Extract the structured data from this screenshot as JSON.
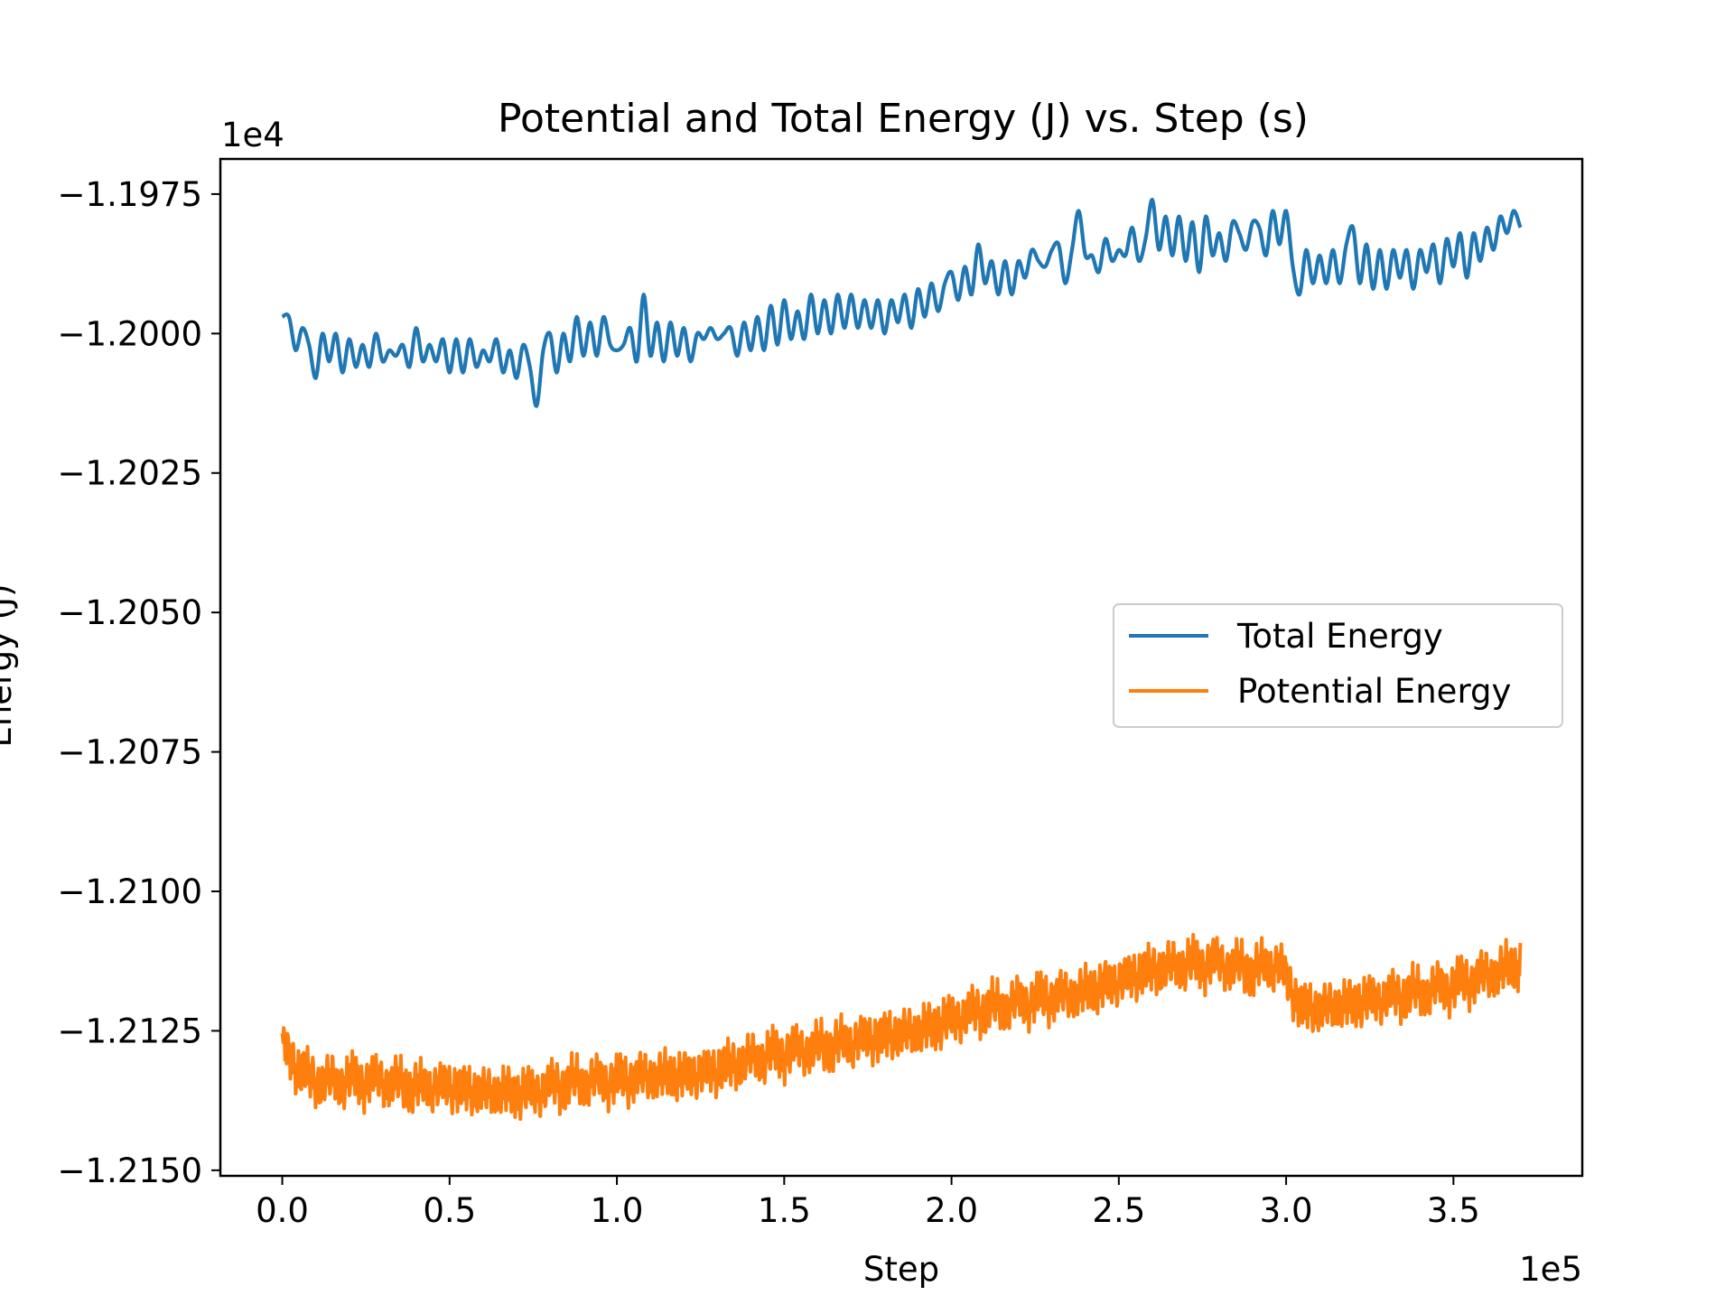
{
  "chart_data": {
    "type": "line",
    "title": "Potential and Total Energy (J) vs. Step (s)",
    "xlabel": "Step",
    "ylabel": "Energy (J)",
    "x_offset_label": "1e5",
    "y_offset_label": "1e4",
    "xlim": [
      -0.185,
      3.885
    ],
    "ylim": [
      -1.2151,
      -1.19687
    ],
    "x_ticks": [
      {
        "value": 0.0,
        "label": "0.0"
      },
      {
        "value": 0.5,
        "label": "0.5"
      },
      {
        "value": 1.0,
        "label": "1.0"
      },
      {
        "value": 1.5,
        "label": "1.5"
      },
      {
        "value": 2.0,
        "label": "2.0"
      },
      {
        "value": 2.5,
        "label": "2.5"
      },
      {
        "value": 3.0,
        "label": "3.0"
      },
      {
        "value": 3.5,
        "label": "3.5"
      }
    ],
    "y_ticks": [
      {
        "value": -1.1975,
        "label": "−1.1975"
      },
      {
        "value": -1.2,
        "label": "−1.2000"
      },
      {
        "value": -1.2025,
        "label": "−1.2025"
      },
      {
        "value": -1.205,
        "label": "−1.2050"
      },
      {
        "value": -1.2075,
        "label": "−1.2075"
      },
      {
        "value": -1.21,
        "label": "−1.2100"
      },
      {
        "value": -1.2125,
        "label": "−1.2125"
      },
      {
        "value": -1.215,
        "label": "−1.2150"
      }
    ],
    "grid": false,
    "legend_position": "center-right",
    "series": [
      {
        "name": "Total Energy",
        "color": "#1f77b4",
        "points": [
          [
            0.0,
            -1.1997
          ],
          [
            0.02,
            -1.1997
          ],
          [
            0.04,
            -1.2003
          ],
          [
            0.06,
            -1.1999
          ],
          [
            0.08,
            -1.2002
          ],
          [
            0.1,
            -1.2008
          ],
          [
            0.12,
            -1.2
          ],
          [
            0.14,
            -1.2005
          ],
          [
            0.16,
            -1.2
          ],
          [
            0.18,
            -1.2007
          ],
          [
            0.2,
            -1.2001
          ],
          [
            0.22,
            -1.2006
          ],
          [
            0.24,
            -1.2002
          ],
          [
            0.26,
            -1.2006
          ],
          [
            0.28,
            -1.2
          ],
          [
            0.3,
            -1.2005
          ],
          [
            0.32,
            -1.2003
          ],
          [
            0.34,
            -1.2004
          ],
          [
            0.36,
            -1.2002
          ],
          [
            0.38,
            -1.2006
          ],
          [
            0.4,
            -1.1999
          ],
          [
            0.42,
            -1.2005
          ],
          [
            0.44,
            -1.2002
          ],
          [
            0.46,
            -1.2005
          ],
          [
            0.48,
            -1.2001
          ],
          [
            0.5,
            -1.2007
          ],
          [
            0.52,
            -1.2001
          ],
          [
            0.54,
            -1.2007
          ],
          [
            0.56,
            -1.2001
          ],
          [
            0.58,
            -1.2006
          ],
          [
            0.6,
            -1.2003
          ],
          [
            0.62,
            -1.2005
          ],
          [
            0.64,
            -1.2001
          ],
          [
            0.66,
            -1.2007
          ],
          [
            0.68,
            -1.2003
          ],
          [
            0.7,
            -1.2008
          ],
          [
            0.72,
            -1.2002
          ],
          [
            0.74,
            -1.2006
          ],
          [
            0.76,
            -1.2013
          ],
          [
            0.78,
            -1.2003
          ],
          [
            0.8,
            -1.2
          ],
          [
            0.82,
            -1.2007
          ],
          [
            0.84,
            -1.2
          ],
          [
            0.86,
            -1.2005
          ],
          [
            0.88,
            -1.1997
          ],
          [
            0.9,
            -1.2004
          ],
          [
            0.92,
            -1.1998
          ],
          [
            0.94,
            -1.2004
          ],
          [
            0.96,
            -1.1997
          ],
          [
            0.98,
            -1.2002
          ],
          [
            1.0,
            -1.2003
          ],
          [
            1.02,
            -1.2002
          ],
          [
            1.04,
            -1.1999
          ],
          [
            1.06,
            -1.2005
          ],
          [
            1.08,
            -1.1993
          ],
          [
            1.1,
            -1.2004
          ],
          [
            1.12,
            -1.1998
          ],
          [
            1.14,
            -1.2005
          ],
          [
            1.16,
            -1.1998
          ],
          [
            1.18,
            -1.2004
          ],
          [
            1.2,
            -1.1999
          ],
          [
            1.22,
            -1.2005
          ],
          [
            1.24,
            -1.2
          ],
          [
            1.26,
            -1.2001
          ],
          [
            1.28,
            -1.1999
          ],
          [
            1.3,
            -1.2001
          ],
          [
            1.32,
            -1.2
          ],
          [
            1.34,
            -1.1999
          ],
          [
            1.36,
            -1.2004
          ],
          [
            1.38,
            -1.1998
          ],
          [
            1.4,
            -1.2003
          ],
          [
            1.42,
            -1.1997
          ],
          [
            1.44,
            -1.2003
          ],
          [
            1.46,
            -1.1995
          ],
          [
            1.48,
            -1.2002
          ],
          [
            1.5,
            -1.1994
          ],
          [
            1.52,
            -1.2001
          ],
          [
            1.54,
            -1.1996
          ],
          [
            1.56,
            -1.2001
          ],
          [
            1.58,
            -1.1993
          ],
          [
            1.6,
            -1.2
          ],
          [
            1.62,
            -1.1994
          ],
          [
            1.64,
            -1.2
          ],
          [
            1.66,
            -1.1993
          ],
          [
            1.68,
            -1.1999
          ],
          [
            1.7,
            -1.1993
          ],
          [
            1.72,
            -1.1999
          ],
          [
            1.74,
            -1.1994
          ],
          [
            1.76,
            -1.1999
          ],
          [
            1.78,
            -1.1994
          ],
          [
            1.8,
            -1.2
          ],
          [
            1.82,
            -1.1994
          ],
          [
            1.84,
            -1.1998
          ],
          [
            1.86,
            -1.1993
          ],
          [
            1.88,
            -1.1999
          ],
          [
            1.9,
            -1.1992
          ],
          [
            1.92,
            -1.1997
          ],
          [
            1.94,
            -1.1991
          ],
          [
            1.96,
            -1.1996
          ],
          [
            1.98,
            -1.1991
          ],
          [
            2.0,
            -1.1989
          ],
          [
            2.02,
            -1.1994
          ],
          [
            2.04,
            -1.1988
          ],
          [
            2.06,
            -1.1993
          ],
          [
            2.08,
            -1.1984
          ],
          [
            2.1,
            -1.1991
          ],
          [
            2.12,
            -1.1987
          ],
          [
            2.14,
            -1.1993
          ],
          [
            2.16,
            -1.1987
          ],
          [
            2.18,
            -1.1993
          ],
          [
            2.2,
            -1.1987
          ],
          [
            2.22,
            -1.199
          ],
          [
            2.24,
            -1.1985
          ],
          [
            2.26,
            -1.1987
          ],
          [
            2.28,
            -1.1988
          ],
          [
            2.3,
            -1.1985
          ],
          [
            2.32,
            -1.1984
          ],
          [
            2.34,
            -1.1991
          ],
          [
            2.36,
            -1.1985
          ],
          [
            2.38,
            -1.1978
          ],
          [
            2.4,
            -1.1986
          ],
          [
            2.42,
            -1.1986
          ],
          [
            2.44,
            -1.1989
          ],
          [
            2.46,
            -1.1983
          ],
          [
            2.48,
            -1.1987
          ],
          [
            2.5,
            -1.1985
          ],
          [
            2.52,
            -1.1986
          ],
          [
            2.54,
            -1.1981
          ],
          [
            2.56,
            -1.1987
          ],
          [
            2.58,
            -1.1983
          ],
          [
            2.6,
            -1.1976
          ],
          [
            2.62,
            -1.1985
          ],
          [
            2.64,
            -1.1979
          ],
          [
            2.66,
            -1.1986
          ],
          [
            2.68,
            -1.1979
          ],
          [
            2.7,
            -1.1987
          ],
          [
            2.72,
            -1.198
          ],
          [
            2.74,
            -1.1989
          ],
          [
            2.76,
            -1.1979
          ],
          [
            2.78,
            -1.1986
          ],
          [
            2.8,
            -1.1982
          ],
          [
            2.82,
            -1.1987
          ],
          [
            2.84,
            -1.198
          ],
          [
            2.86,
            -1.1982
          ],
          [
            2.88,
            -1.1985
          ],
          [
            2.9,
            -1.198
          ],
          [
            2.92,
            -1.1981
          ],
          [
            2.94,
            -1.1986
          ],
          [
            2.96,
            -1.1978
          ],
          [
            2.98,
            -1.1984
          ],
          [
            3.0,
            -1.1978
          ],
          [
            3.02,
            -1.1988
          ],
          [
            3.04,
            -1.1993
          ],
          [
            3.06,
            -1.1985
          ],
          [
            3.08,
            -1.1991
          ],
          [
            3.1,
            -1.1986
          ],
          [
            3.12,
            -1.1991
          ],
          [
            3.14,
            -1.1985
          ],
          [
            3.16,
            -1.1991
          ],
          [
            3.18,
            -1.1984
          ],
          [
            3.2,
            -1.1981
          ],
          [
            3.22,
            -1.1991
          ],
          [
            3.24,
            -1.1984
          ],
          [
            3.26,
            -1.1992
          ],
          [
            3.28,
            -1.1985
          ],
          [
            3.3,
            -1.1992
          ],
          [
            3.32,
            -1.1985
          ],
          [
            3.34,
            -1.199
          ],
          [
            3.36,
            -1.1985
          ],
          [
            3.38,
            -1.1992
          ],
          [
            3.4,
            -1.1985
          ],
          [
            3.42,
            -1.1989
          ],
          [
            3.44,
            -1.1984
          ],
          [
            3.46,
            -1.1991
          ],
          [
            3.48,
            -1.1983
          ],
          [
            3.5,
            -1.1988
          ],
          [
            3.52,
            -1.1982
          ],
          [
            3.54,
            -1.199
          ],
          [
            3.56,
            -1.1982
          ],
          [
            3.58,
            -1.1987
          ],
          [
            3.6,
            -1.1981
          ],
          [
            3.62,
            -1.1985
          ],
          [
            3.64,
            -1.1979
          ],
          [
            3.66,
            -1.1982
          ],
          [
            3.68,
            -1.1978
          ],
          [
            3.7,
            -1.1981
          ]
        ]
      },
      {
        "name": "Potential Energy",
        "color": "#ff7f0e",
        "points": [
          [
            0.0,
            -1.2128
          ],
          [
            0.05,
            -1.2132
          ],
          [
            0.1,
            -1.2134
          ],
          [
            0.2,
            -1.2134
          ],
          [
            0.3,
            -1.2134
          ],
          [
            0.4,
            -1.2135
          ],
          [
            0.5,
            -1.2135
          ],
          [
            0.6,
            -1.2136
          ],
          [
            0.7,
            -1.2136
          ],
          [
            0.75,
            -1.2136
          ],
          [
            0.8,
            -1.2135
          ],
          [
            0.9,
            -1.2134
          ],
          [
            1.0,
            -1.2134
          ],
          [
            1.1,
            -1.2133
          ],
          [
            1.2,
            -1.2133
          ],
          [
            1.3,
            -1.2132
          ],
          [
            1.4,
            -1.213
          ],
          [
            1.5,
            -1.2129
          ],
          [
            1.6,
            -1.2128
          ],
          [
            1.7,
            -1.2127
          ],
          [
            1.8,
            -1.2126
          ],
          [
            1.9,
            -1.2125
          ],
          [
            2.0,
            -1.2123
          ],
          [
            2.1,
            -1.2121
          ],
          [
            2.2,
            -1.212
          ],
          [
            2.3,
            -1.2119
          ],
          [
            2.4,
            -1.2118
          ],
          [
            2.5,
            -1.2116
          ],
          [
            2.6,
            -1.2114
          ],
          [
            2.7,
            -1.2113
          ],
          [
            2.8,
            -1.2113
          ],
          [
            2.9,
            -1.2114
          ],
          [
            2.98,
            -1.2113
          ],
          [
            3.0,
            -1.2116
          ],
          [
            3.05,
            -1.2121
          ],
          [
            3.1,
            -1.2121
          ],
          [
            3.2,
            -1.212
          ],
          [
            3.3,
            -1.2119
          ],
          [
            3.4,
            -1.2118
          ],
          [
            3.5,
            -1.2117
          ],
          [
            3.6,
            -1.2115
          ],
          [
            3.7,
            -1.2113
          ]
        ],
        "fluctuation_amplitude": 0.00045
      }
    ]
  }
}
